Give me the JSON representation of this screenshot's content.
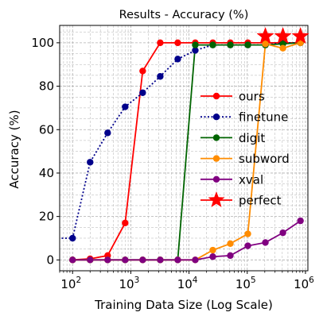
{
  "chart_data": {
    "type": "line",
    "title": "Results - Accuracy (%)",
    "xlabel": "Training Data Size (Log Scale)",
    "ylabel": "Accuracy (%)",
    "xscale": "log",
    "xlim": [
      60,
      1100000
    ],
    "ylim": [
      -5,
      108
    ],
    "x_ticks": [
      {
        "value": 100,
        "base": "10",
        "exp": "2"
      },
      {
        "value": 1000,
        "base": "10",
        "exp": "3"
      },
      {
        "value": 10000,
        "base": "10",
        "exp": "4"
      },
      {
        "value": 100000,
        "base": "10",
        "exp": "5"
      },
      {
        "value": 1000000,
        "base": "10",
        "exp": "6"
      }
    ],
    "y_ticks": [
      {
        "value": 0,
        "label": "0"
      },
      {
        "value": 20,
        "label": "20"
      },
      {
        "value": 40,
        "label": "40"
      },
      {
        "value": 60,
        "label": "60"
      },
      {
        "value": 80,
        "label": "80"
      },
      {
        "value": 100,
        "label": "100"
      }
    ],
    "grid": true,
    "legend_position": "center-right",
    "x": [
      100,
      200,
      400,
      800,
      1600,
      3200,
      6400,
      12800,
      25600,
      51200,
      102400,
      204800,
      409600,
      819200
    ],
    "series": [
      {
        "name": "ours",
        "color": "#ff0000",
        "line": "solid",
        "marker": "circle",
        "values": [
          0,
          0.5,
          2,
          17,
          87,
          100,
          100,
          100,
          100,
          100,
          100,
          100,
          100,
          100
        ]
      },
      {
        "name": "finetune",
        "color": "#00008b",
        "line": "dotted",
        "marker": "circle",
        "values": [
          10,
          45,
          58.5,
          70.5,
          77,
          84.5,
          92.5,
          96.5,
          99,
          99,
          99,
          99,
          100,
          100
        ]
      },
      {
        "name": "digit",
        "color": "#006400",
        "line": "solid",
        "marker": "circle",
        "values": [
          0,
          0,
          0,
          0,
          0,
          0,
          0,
          99,
          99,
          99,
          99,
          99,
          99.5,
          100
        ]
      },
      {
        "name": "subword",
        "color": "#ff8c00",
        "line": "solid",
        "marker": "circle",
        "values": [
          0,
          0,
          0,
          0,
          0,
          0,
          0,
          0,
          4.5,
          7.5,
          12,
          99.5,
          97.5,
          100
        ]
      },
      {
        "name": "xval",
        "color": "#800080",
        "line": "solid",
        "marker": "circle",
        "values": [
          0,
          0,
          0,
          0,
          0,
          0,
          0,
          0,
          1.5,
          2,
          6.5,
          8,
          12.5,
          18
        ]
      },
      {
        "name": "perfect",
        "color": "#ff0000",
        "line": "solid",
        "marker": "star",
        "x": [
          204800,
          409600,
          819200
        ],
        "values": [
          103,
          103,
          103
        ]
      }
    ]
  }
}
